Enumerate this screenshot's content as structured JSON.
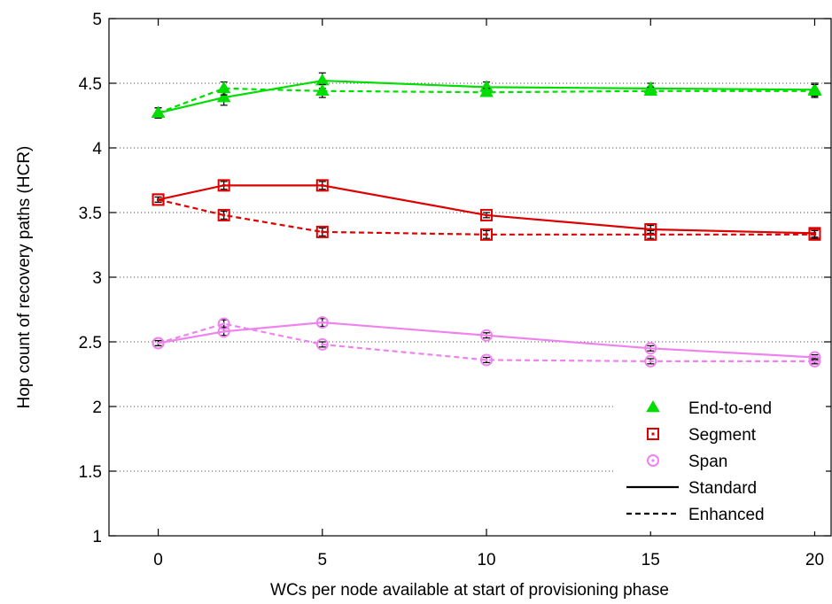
{
  "chart_data": {
    "type": "line",
    "xlabel": "WCs per node available at start of provisioning phase",
    "ylabel": "Hop count of recovery paths (HCR)",
    "xlim": [
      -1.5,
      20.5
    ],
    "ylim": [
      1,
      5
    ],
    "x": [
      0,
      2,
      5,
      10,
      15,
      20
    ],
    "x_ticks": [
      "0",
      "5",
      "10",
      "15",
      "20"
    ],
    "y_ticks": [
      "1",
      "1.5",
      "2",
      "2.5",
      "3",
      "3.5",
      "4",
      "4.5",
      "5"
    ],
    "grid": "horizontal-dotted",
    "legend_position": "bottom-right",
    "legend": {
      "schemes": [
        {
          "label": "End-to-end",
          "marker": "triangle",
          "color": "#00dd00"
        },
        {
          "label": "Segment",
          "marker": "square",
          "color": "#dd0000"
        },
        {
          "label": "Span",
          "marker": "circle",
          "color": "#ee82ee"
        }
      ],
      "styles": [
        {
          "label": "Standard",
          "dash": "solid"
        },
        {
          "label": "Enhanced",
          "dash": "dashed"
        }
      ]
    },
    "series": [
      {
        "scheme": "End-to-end",
        "style": "Standard",
        "color": "#00dd00",
        "marker": "triangle",
        "dash": "solid",
        "values": [
          4.27,
          4.39,
          4.52,
          4.47,
          4.46,
          4.45
        ],
        "errors": [
          0.04,
          0.06,
          0.06,
          0.04,
          0.04,
          0.05
        ]
      },
      {
        "scheme": "End-to-end",
        "style": "Enhanced",
        "color": "#00dd00",
        "marker": "triangle",
        "dash": "dashed",
        "values": [
          4.27,
          4.46,
          4.44,
          4.43,
          4.44,
          4.44
        ],
        "errors": [
          0.04,
          0.05,
          0.05,
          0.03,
          0.03,
          0.05
        ]
      },
      {
        "scheme": "Segment",
        "style": "Standard",
        "color": "#dd0000",
        "marker": "square",
        "dash": "solid",
        "values": [
          3.6,
          3.71,
          3.71,
          3.48,
          3.37,
          3.34
        ],
        "errors": [
          0.02,
          0.03,
          0.03,
          0.02,
          0.03,
          0.03
        ]
      },
      {
        "scheme": "Segment",
        "style": "Enhanced",
        "color": "#dd0000",
        "marker": "square",
        "dash": "dashed",
        "values": [
          3.6,
          3.48,
          3.35,
          3.33,
          3.33,
          3.33
        ],
        "errors": [
          0.02,
          0.03,
          0.03,
          0.03,
          0.03,
          0.03
        ]
      },
      {
        "scheme": "Span",
        "style": "Standard",
        "color": "#ee82ee",
        "marker": "circle",
        "dash": "solid",
        "values": [
          2.49,
          2.58,
          2.65,
          2.55,
          2.45,
          2.38
        ],
        "errors": [
          0.02,
          0.03,
          0.03,
          0.02,
          0.02,
          0.02
        ]
      },
      {
        "scheme": "Span",
        "style": "Enhanced",
        "color": "#ee82ee",
        "marker": "circle",
        "dash": "dashed",
        "values": [
          2.49,
          2.64,
          2.48,
          2.36,
          2.35,
          2.35
        ],
        "errors": [
          0.02,
          0.03,
          0.02,
          0.02,
          0.02,
          0.02
        ]
      }
    ]
  }
}
